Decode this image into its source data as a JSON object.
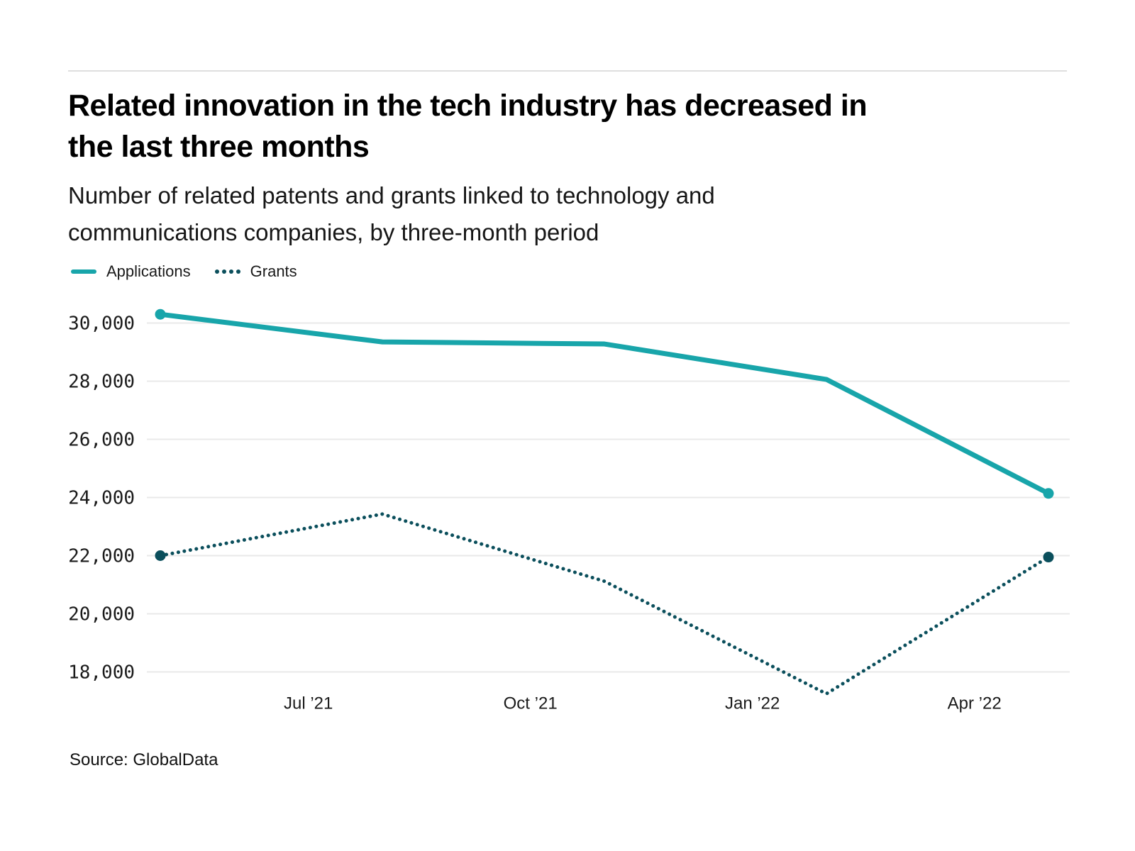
{
  "header": {
    "title_lines": [
      "Related innovation in the tech industry has decreased in",
      "the last three months"
    ],
    "subtitle_lines": [
      "Number of related patents and grants linked to technology and",
      "communications companies, by three-month period"
    ]
  },
  "footer": {
    "source": "Source: GlobalData"
  },
  "theme": {
    "applications_color": "#18A5AA",
    "grants_color": "#0B4F5C",
    "gridline_color": "#E9E9E9",
    "axis_text_color": "#1A1A1A",
    "rule_color": "#DEDEDE"
  },
  "chart_data": {
    "type": "line",
    "title": "Related innovation in the tech industry has decreased in the last three months",
    "subtitle": "Number of related patents and grants linked to technology and communications companies, by three-month period",
    "grid": true,
    "legend_position": "top-left",
    "x_months": [
      0,
      3,
      6,
      9,
      12
    ],
    "series": [
      {
        "name": "Applications",
        "style": "solid",
        "color": "#18A5AA",
        "values": [
          30300,
          29350,
          29280,
          28060,
          24140
        ]
      },
      {
        "name": "Grants",
        "style": "dotted",
        "color": "#0B4F5C",
        "values": [
          22000,
          23430,
          21120,
          17250,
          21950
        ]
      }
    ],
    "endpoint_markers": "first-and-last",
    "y_ticks": {
      "values": [
        30000,
        28000,
        26000,
        24000,
        22000,
        20000,
        18000
      ],
      "labels": [
        "30,000",
        "28,000",
        "26,000",
        "24,000",
        "22,000",
        "20,000",
        "18,000"
      ]
    },
    "x_ticks": {
      "months": [
        2,
        5,
        8,
        11
      ],
      "labels": [
        "Jul ’21",
        "Oct ’21",
        "Jan ’22",
        "Apr ’22"
      ]
    },
    "ylim": [
      17000,
      30600
    ]
  }
}
